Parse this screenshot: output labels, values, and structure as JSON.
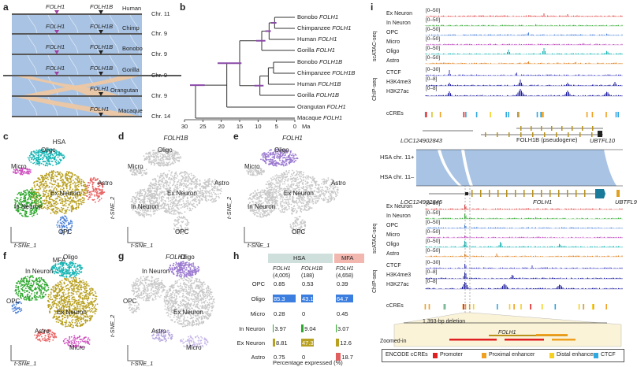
{
  "panels": {
    "a": "a",
    "b": "b",
    "c": "c",
    "d": "d",
    "e": "e",
    "f": "f",
    "g": "g",
    "h": "h",
    "i": "i"
  },
  "panel_a": {
    "rows": [
      {
        "species": "Human",
        "chr": "Chr. 11",
        "gene1": "FOLH1",
        "gene2": "FOLH1B"
      },
      {
        "species": "Chimp",
        "chr": "Chr. 9",
        "gene1": "FOLH1",
        "gene2": "FOLH1B"
      },
      {
        "species": "Bonobo",
        "chr": "Chr. 9",
        "gene1": "FOLH1",
        "gene2": "FOLH1B"
      },
      {
        "species": "Gorilla",
        "chr": "Chr. 9",
        "gene1": "FOLH1",
        "gene2": "FOLH1B"
      },
      {
        "species": "Orangutan",
        "chr": "Chr. 9",
        "gene1": "",
        "gene2": "FOLH1"
      },
      {
        "species": "Macaque",
        "chr": "Chr. 14",
        "gene1": "",
        "gene2": "FOLH1"
      }
    ]
  },
  "panel_b": {
    "leaves": [
      {
        "species": "Bonobo",
        "gene": "FOLH1"
      },
      {
        "species": "Chimpanzee",
        "gene": "FOLH1"
      },
      {
        "species": "Human",
        "gene": "FOLH1"
      },
      {
        "species": "Gorilla",
        "gene": "FOLH1"
      },
      {
        "species": "Bonobo",
        "gene": "FOLH1B"
      },
      {
        "species": "Chimpanzee",
        "gene": "FOLH1B"
      },
      {
        "species": "Human",
        "gene": "FOLH1B"
      },
      {
        "species": "Gorilla",
        "gene": "FOLH1B"
      },
      {
        "species": "Orangutan",
        "gene": "FOLH1"
      },
      {
        "species": "Macaque",
        "gene": "FOLH1"
      }
    ],
    "axis_ticks": [
      "30",
      "25",
      "20",
      "15",
      "10",
      "5",
      "0"
    ],
    "axis_unit": "Ma"
  },
  "tsne": {
    "c": {
      "title": "HSA",
      "labels": [
        "Oligo",
        "Micro",
        "Astro",
        "Ex Neuron",
        "In Neuron",
        "OPC"
      ]
    },
    "d": {
      "title": "FOLH1B",
      "labels": [
        "Oligo",
        "Micro",
        "Astro",
        "Ex Neuron",
        "In Neuron",
        "OPC"
      ]
    },
    "e": {
      "title": "FOLH1",
      "labels": [
        "Oligo",
        "Micro",
        "Astro",
        "Ex Neuron",
        "In Neuron",
        "OPC"
      ]
    },
    "f": {
      "title": "MFA",
      "labels": [
        "Oligo",
        "In Neuron",
        "OPC",
        "Ex Neuron",
        "Astro",
        "Micro"
      ]
    },
    "g": {
      "title": "FOLH1",
      "labels": [
        "Oligo",
        "In Neuron",
        "OPC",
        "Ex Neuron",
        "Astro",
        "Micro"
      ]
    },
    "axis_x": "t-SNE_1",
    "axis_y": "t-SNE_2"
  },
  "chart_data": {
    "type": "table",
    "title": "Percentage expressed (%)",
    "groups": [
      {
        "name": "HSA",
        "columns": [
          {
            "gene": "FOLH1",
            "n": "(4,005)"
          },
          {
            "gene": "FOLH1B",
            "n": "(188)"
          }
        ]
      },
      {
        "name": "MFA",
        "columns": [
          {
            "gene": "FOLH1",
            "n": "(4,658)"
          }
        ]
      }
    ],
    "rows": [
      "OPC",
      "Oligo",
      "Micro",
      "In Neuron",
      "Ex Neuron",
      "Astro"
    ],
    "series": [
      {
        "name": "HSA FOLH1",
        "values": [
          0.85,
          85.3,
          0.28,
          3.97,
          8.81,
          0.75
        ]
      },
      {
        "name": "HSA FOLH1B",
        "values": [
          0.53,
          43.1,
          0,
          9.04,
          47.3,
          0
        ]
      },
      {
        "name": "MFA FOLH1",
        "values": [
          0.39,
          64.7,
          0.45,
          3.07,
          12.6,
          18.7
        ]
      }
    ],
    "value_labels": [
      [
        "0.85",
        "0.53",
        "0.39"
      ],
      [
        "85.3",
        "43.1",
        "64.7"
      ],
      [
        "0.28",
        "0",
        "0.45"
      ],
      [
        "3.97",
        "9.04",
        "3.07"
      ],
      [
        "8.81",
        "47.3",
        "12.6"
      ],
      [
        "0.75",
        "0",
        "18.7"
      ]
    ],
    "colors": {
      "OPC": "#4a7fd0",
      "Oligo": "#3c7ee0",
      "Micro": "#c040b0",
      "In Neuron": "#2ea82e",
      "Ex Neuron": "#b8a020",
      "Astro": "#e06060"
    }
  },
  "panel_i": {
    "track_labels_top": [
      {
        "name": "Ex Neuron",
        "range": "[0–50]"
      },
      {
        "name": "In Neuron",
        "range": "[0–50]"
      },
      {
        "name": "OPC",
        "range": "[0–50]"
      },
      {
        "name": "Micro",
        "range": "[0–50]"
      },
      {
        "name": "Oligo",
        "range": "[0–50]"
      },
      {
        "name": "Astro",
        "range": "[0–50]"
      },
      {
        "name": "CTCF",
        "range": "[0–30]"
      },
      {
        "name": "H3K4me3",
        "range": "[0–8]"
      },
      {
        "name": "H3K27ac",
        "range": "[0–8]"
      }
    ],
    "group_scatac": "scATAC-seq",
    "group_chip": "ChIP-seq",
    "cres_label": "cCREs",
    "gene_top": [
      "LOC124902843",
      "FOLH1B (pseudogene)",
      "UBTFL10"
    ],
    "hsa_plus": "HSA chr. 11+",
    "hsa_minus": "HSA chr. 11–",
    "gene_bottom": [
      "LOC124902845",
      "FOLH1",
      "UBTFL9"
    ],
    "deletion": "1,393-bp deletion",
    "zoom_gene": "FOLH1",
    "zoomed_in": "Zoomed-in",
    "legend": {
      "title": "ENCODE cCREs",
      "items": [
        {
          "label": "Promoter",
          "color": "#e02020"
        },
        {
          "label": "Proximal enhancer",
          "color": "#f0a020"
        },
        {
          "label": "Distal enhancer",
          "color": "#f5d020"
        },
        {
          "label": "CTCF",
          "color": "#30a8e0"
        }
      ]
    }
  }
}
